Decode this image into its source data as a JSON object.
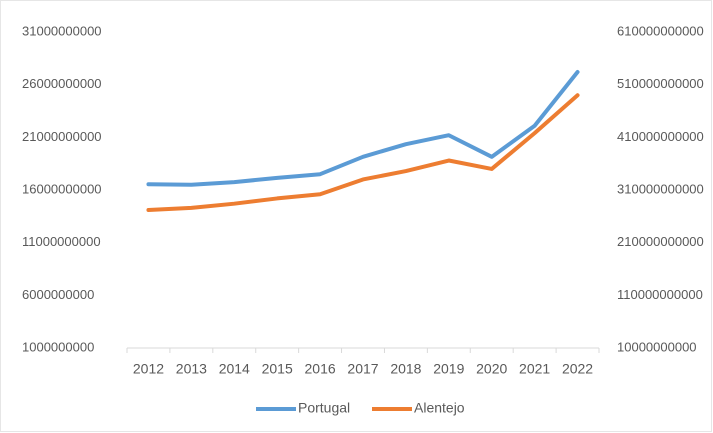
{
  "chart_data": {
    "type": "line",
    "categories": [
      "2012",
      "2013",
      "2014",
      "2015",
      "2016",
      "2017",
      "2018",
      "2019",
      "2020",
      "2021",
      "2022"
    ],
    "series": [
      {
        "name": "Portugal",
        "color": "#5b9bd5",
        "axis": "y2",
        "values": [
          321000000000,
          320000000000,
          325000000000,
          333000000000,
          340000000000,
          373000000000,
          397000000000,
          414000000000,
          373000000000,
          432000000000,
          534000000000
        ]
      },
      {
        "name": "Alentejo",
        "color": "#ed7d31",
        "axis": "y",
        "values": [
          14100000000,
          14300000000,
          14700000000,
          15200000000,
          15600000000,
          17000000000,
          17800000000,
          18800000000,
          18000000000,
          21400000000,
          25000000000
        ]
      }
    ],
    "ylim": [
      1000000000,
      31000000000
    ],
    "yticks": [
      1000000000,
      6000000000,
      11000000000,
      16000000000,
      21000000000,
      26000000000,
      31000000000
    ],
    "y2lim": [
      10000000000,
      610000000000
    ],
    "y2ticks": [
      10000000000,
      110000000000,
      210000000000,
      310000000000,
      410000000000,
      510000000000,
      610000000000
    ],
    "grid": false,
    "legend": "bottom"
  }
}
